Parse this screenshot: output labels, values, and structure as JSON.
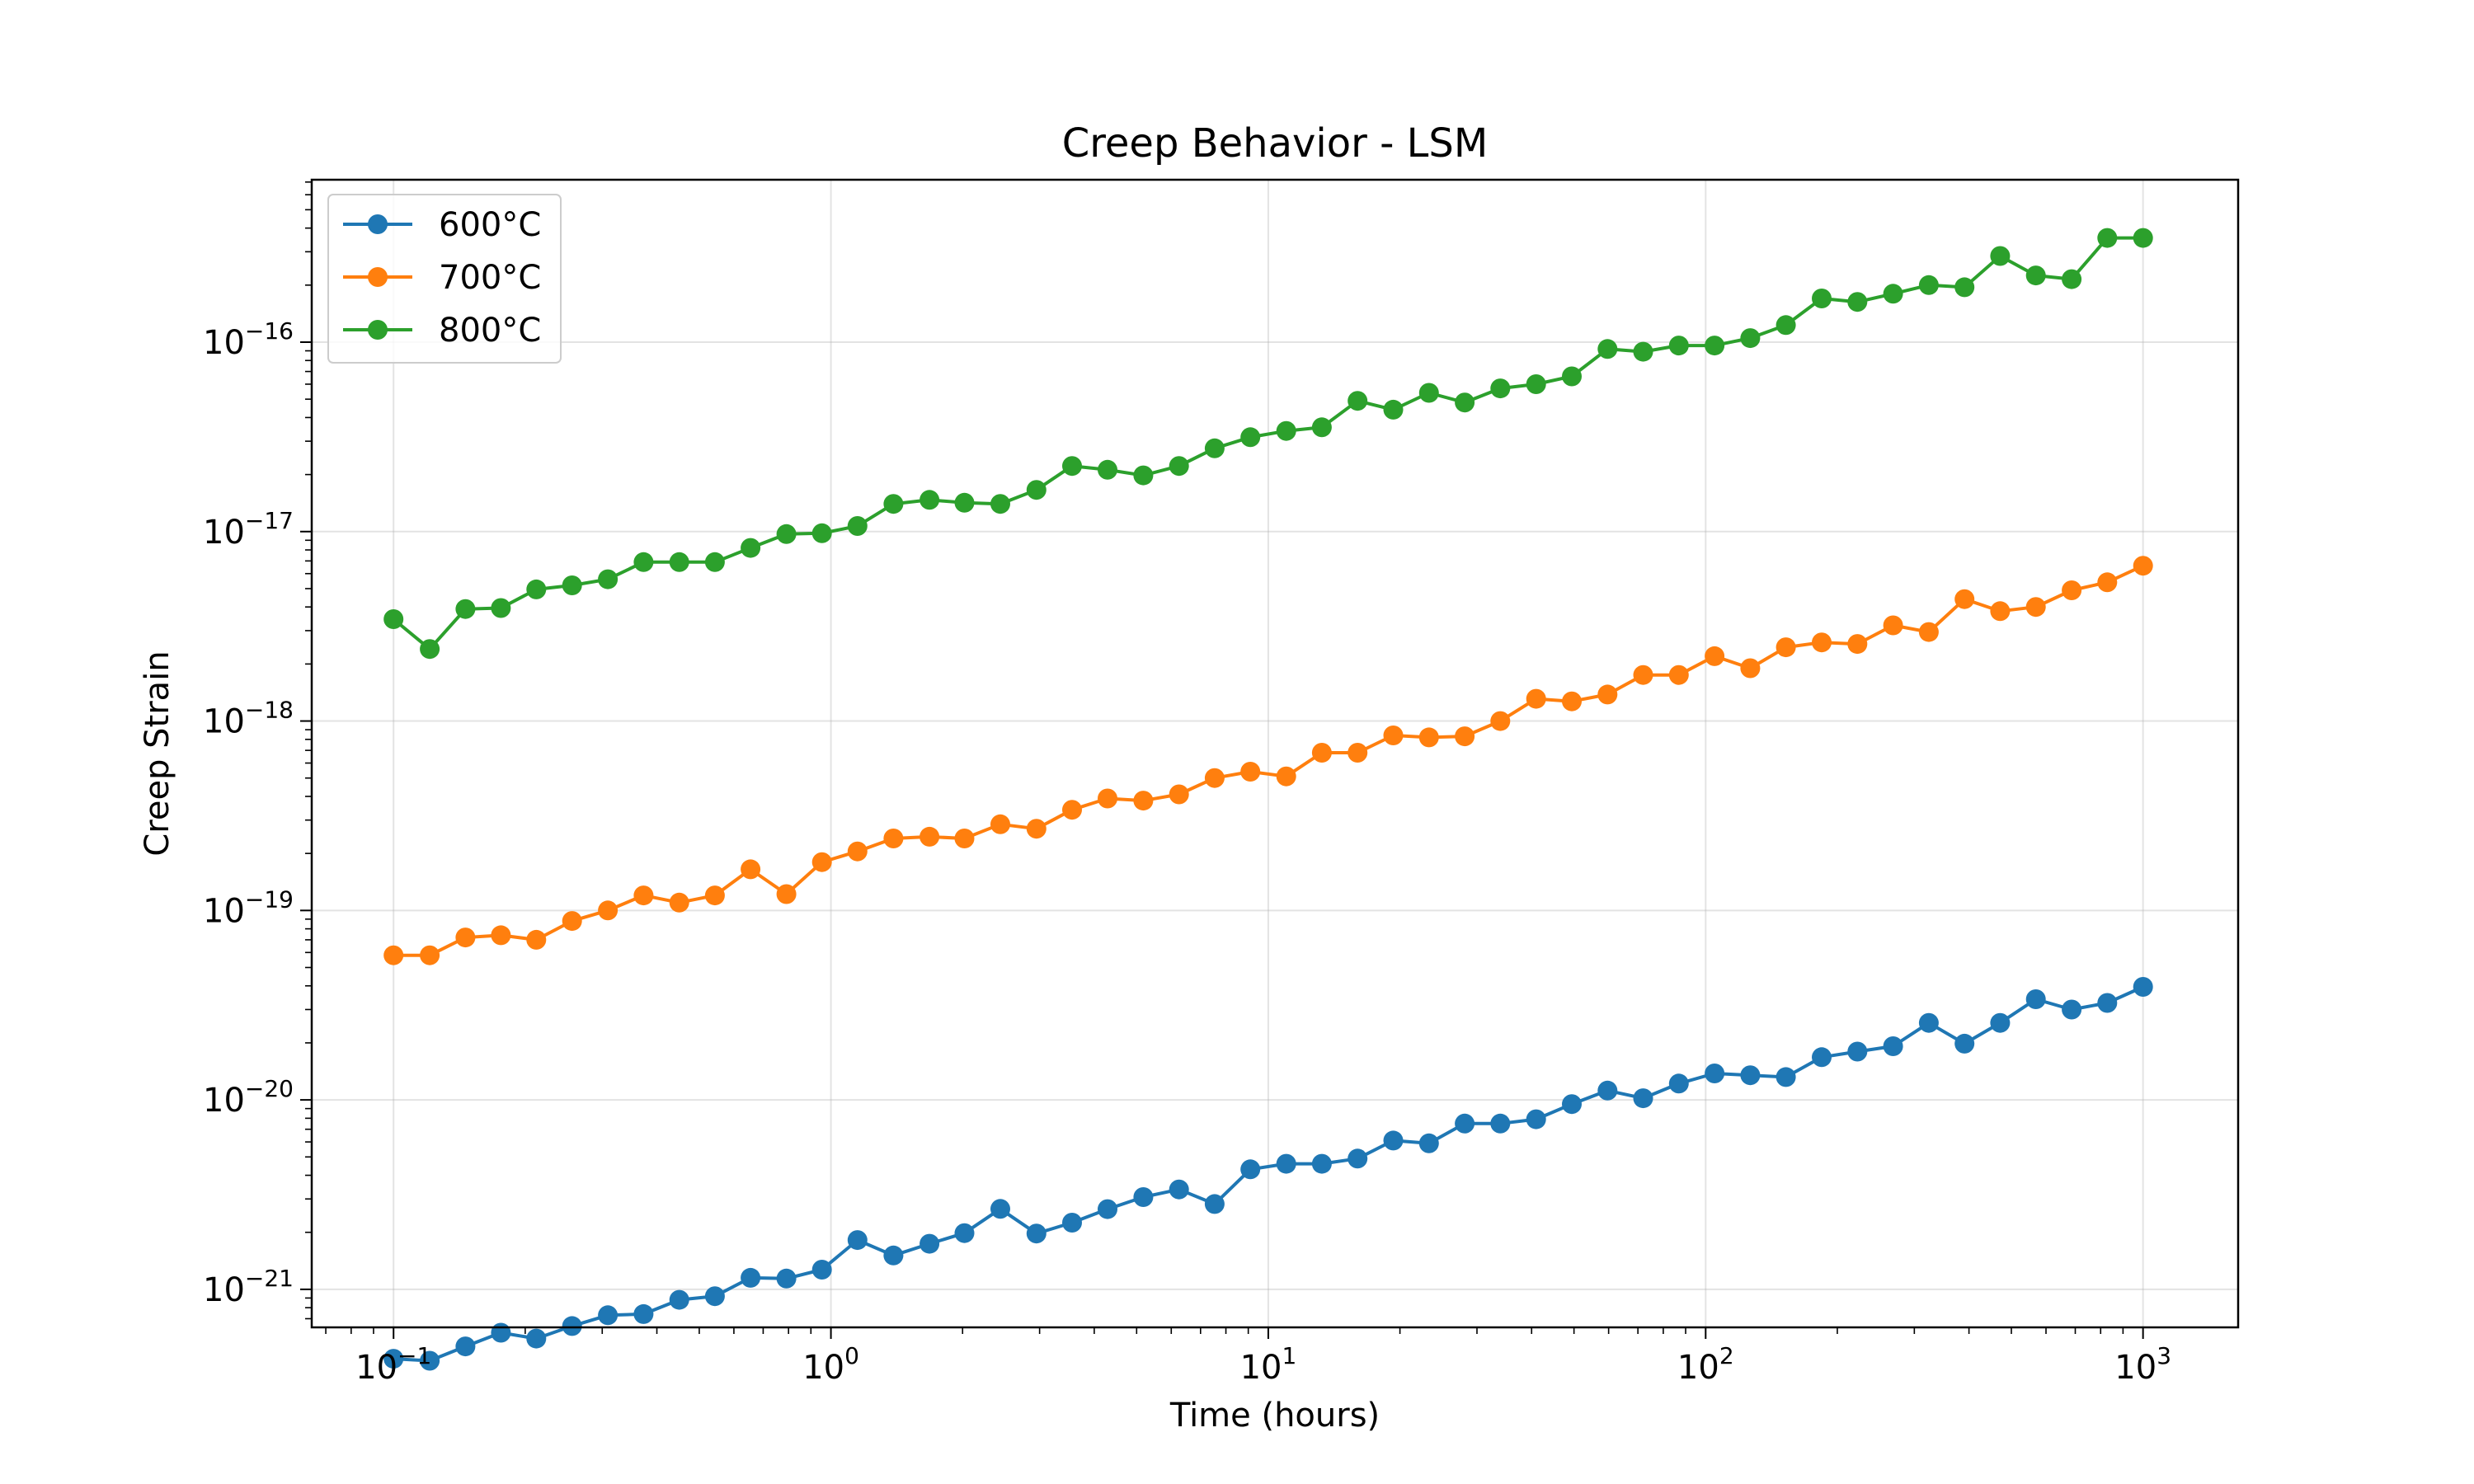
{
  "chart_data": {
    "type": "line",
    "title": "Creep Behavior - LSM",
    "xlabel": "Time (hours)",
    "ylabel": "Creep Strain",
    "xscale": "log",
    "yscale": "log",
    "xlim": [
      0.065,
      1650
    ],
    "ylim": [
      6.3e-22,
      7.2e-16
    ],
    "xticks": [
      {
        "value": 0.1,
        "base": "10",
        "exp": "−1"
      },
      {
        "value": 1,
        "base": "10",
        "exp": "0"
      },
      {
        "value": 10,
        "base": "10",
        "exp": "1"
      },
      {
        "value": 100,
        "base": "10",
        "exp": "2"
      },
      {
        "value": 1000,
        "base": "10",
        "exp": "3"
      }
    ],
    "yticks": [
      {
        "value": 1e-21,
        "base": "10",
        "exp": "−21"
      },
      {
        "value": 1e-20,
        "base": "10",
        "exp": "−20"
      },
      {
        "value": 1e-19,
        "base": "10",
        "exp": "−19"
      },
      {
        "value": 1e-18,
        "base": "10",
        "exp": "−18"
      },
      {
        "value": 1e-17,
        "base": "10",
        "exp": "−17"
      },
      {
        "value": 1e-16,
        "base": "10",
        "exp": "−16"
      }
    ],
    "grid": true,
    "legend_position": "top-left",
    "x": [
      0.1,
      0.121,
      0.146,
      0.176,
      0.212,
      0.256,
      0.309,
      0.373,
      0.45,
      0.543,
      0.655,
      0.791,
      0.954,
      1.15,
      1.39,
      1.68,
      2.02,
      2.44,
      2.95,
      3.56,
      4.29,
      5.18,
      6.25,
      7.54,
      9.1,
      10.99,
      13.26,
      16.0,
      19.31,
      23.3,
      28.12,
      33.93,
      40.95,
      49.42,
      59.64,
      71.97,
      86.85,
      104.8,
      126.5,
      152.6,
      184.2,
      222.3,
      268.3,
      323.7,
      390.7,
      471.4,
      568.9,
      686.6,
      828.6,
      1000
    ],
    "series": [
      {
        "name": "600°C",
        "color": "#1f77b4",
        "values": [
          4.3e-22,
          4.2e-22,
          5e-22,
          5.9e-22,
          5.5e-22,
          6.4e-22,
          7.3e-22,
          7.4e-22,
          8.8e-22,
          9.2e-22,
          1.15e-21,
          1.14e-21,
          1.27e-21,
          1.82e-21,
          1.51e-21,
          1.74e-21,
          1.98e-21,
          2.66e-21,
          1.97e-21,
          2.25e-21,
          2.65e-21,
          3.07e-21,
          3.37e-21,
          2.82e-21,
          4.3e-21,
          4.6e-21,
          4.6e-21,
          4.9e-21,
          6.1e-21,
          5.9e-21,
          7.5e-21,
          7.5e-21,
          7.9e-21,
          9.5e-21,
          1.12e-20,
          1.02e-20,
          1.22e-20,
          1.38e-20,
          1.35e-20,
          1.32e-20,
          1.68e-20,
          1.8e-20,
          1.92e-20,
          2.55e-20,
          1.98e-20,
          2.55e-20,
          3.4e-20,
          3e-20,
          3.25e-20,
          3.95e-20
        ]
      },
      {
        "name": "700°C",
        "color": "#ff7f0e",
        "values": [
          5.8e-20,
          5.8e-20,
          7.2e-20,
          7.4e-20,
          7e-20,
          8.8e-20,
          1e-19,
          1.2e-19,
          1.1e-19,
          1.2e-19,
          1.65e-19,
          1.22e-19,
          1.8e-19,
          2.05e-19,
          2.4e-19,
          2.45e-19,
          2.4e-19,
          2.85e-19,
          2.7e-19,
          3.4e-19,
          3.9e-19,
          3.8e-19,
          4.1e-19,
          5e-19,
          5.4e-19,
          5.1e-19,
          6.8e-19,
          6.8e-19,
          8.4e-19,
          8.2e-19,
          8.3e-19,
          1e-18,
          1.31e-18,
          1.27e-18,
          1.38e-18,
          1.75e-18,
          1.75e-18,
          2.2e-18,
          1.9e-18,
          2.45e-18,
          2.6e-18,
          2.55e-18,
          3.2e-18,
          2.95e-18,
          4.4e-18,
          3.8e-18,
          4e-18,
          4.9e-18,
          5.4e-18,
          6.6e-18
        ]
      },
      {
        "name": "800°C",
        "color": "#2ca02c",
        "values": [
          3.45e-18,
          2.4e-18,
          3.9e-18,
          3.95e-18,
          4.95e-18,
          5.2e-18,
          5.6e-18,
          6.9e-18,
          6.9e-18,
          6.9e-18,
          8.2e-18,
          9.7e-18,
          9.8e-18,
          1.07e-17,
          1.4e-17,
          1.47e-17,
          1.42e-17,
          1.4e-17,
          1.66e-17,
          2.22e-17,
          2.12e-17,
          1.98e-17,
          2.22e-17,
          2.75e-17,
          3.15e-17,
          3.4e-17,
          3.55e-17,
          4.9e-17,
          4.4e-17,
          5.4e-17,
          4.8e-17,
          5.7e-17,
          6e-17,
          6.6e-17,
          9.2e-17,
          8.9e-17,
          9.6e-17,
          9.6e-17,
          1.05e-16,
          1.23e-16,
          1.7e-16,
          1.63e-16,
          1.8e-16,
          2e-16,
          1.95e-16,
          2.85e-16,
          2.25e-16,
          2.15e-16,
          3.55e-16,
          3.55e-16
        ]
      }
    ]
  }
}
